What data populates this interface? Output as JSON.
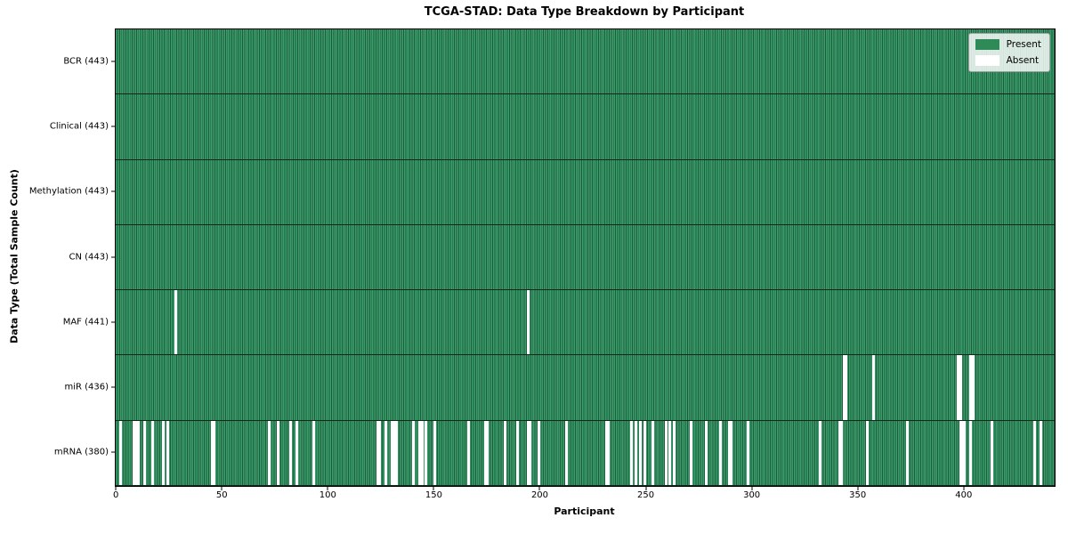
{
  "title": "TCGA-STAD: Data Type Breakdown by Participant",
  "axes": {
    "xlabel": "Participant",
    "ylabel": "Data Type (Total Sample Count)",
    "x_ticks": [
      0,
      50,
      100,
      150,
      200,
      250,
      300,
      350,
      400
    ]
  },
  "legend": {
    "items": [
      {
        "label": "Present",
        "color": "#2e8b57"
      },
      {
        "label": "Absent",
        "color": "#ffffff"
      }
    ]
  },
  "colors": {
    "present": "#2e8b57",
    "present_light": "#3a9d6b",
    "present_dark": "#1c5c3b",
    "absent": "#ffffff",
    "row_separator": "#10281a"
  },
  "chart_data": {
    "type": "heatmap",
    "title": "TCGA-STAD: Data Type Breakdown by Participant",
    "xlabel": "Participant",
    "ylabel": "Data Type (Total Sample Count)",
    "n_participants": 443,
    "x_range": [
      0,
      443
    ],
    "x_ticks": [
      0,
      50,
      100,
      150,
      200,
      250,
      300,
      350,
      400
    ],
    "legend_position": "upper right",
    "grid": false,
    "rows": [
      {
        "label": "BCR (443)",
        "data_type": "BCR",
        "present_count": 443,
        "absent_count": 0,
        "absent_indices": []
      },
      {
        "label": "Clinical (443)",
        "data_type": "Clinical",
        "present_count": 443,
        "absent_count": 0,
        "absent_indices": []
      },
      {
        "label": "Methylation (443)",
        "data_type": "Methylation",
        "present_count": 443,
        "absent_count": 0,
        "absent_indices": []
      },
      {
        "label": "CN (443)",
        "data_type": "CN",
        "present_count": 443,
        "absent_count": 0,
        "absent_indices": []
      },
      {
        "label": "MAF (441)",
        "data_type": "MAF",
        "present_count": 441,
        "absent_count": 2,
        "absent_indices": [
          28,
          194
        ]
      },
      {
        "label": "miR (436)",
        "data_type": "miR",
        "present_count": 436,
        "absent_count": 7,
        "absent_indices": [
          343,
          344,
          357,
          397,
          398,
          403,
          404
        ]
      },
      {
        "label": "mRNA (380)",
        "data_type": "mRNA",
        "present_count": 380,
        "absent_count": 63,
        "absent_indices": [
          2,
          8,
          9,
          10,
          13,
          17,
          22,
          24,
          45,
          46,
          72,
          76,
          82,
          85,
          93,
          123,
          124,
          127,
          130,
          131,
          132,
          140,
          143,
          144,
          146,
          150,
          166,
          174,
          175,
          183,
          189,
          194,
          195,
          199,
          212,
          231,
          232,
          243,
          245,
          247,
          249,
          253,
          259,
          261,
          263,
          271,
          278,
          285,
          289,
          290,
          298,
          332,
          341,
          342,
          354,
          373,
          398,
          399,
          400,
          403,
          413,
          433,
          436
        ]
      }
    ]
  }
}
